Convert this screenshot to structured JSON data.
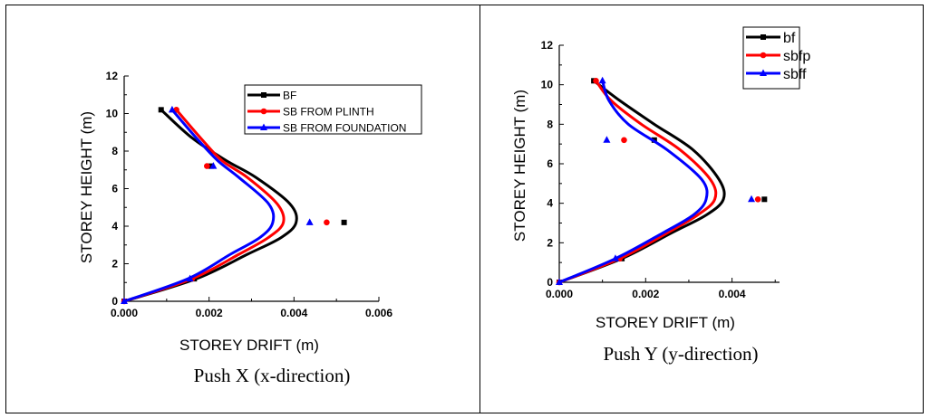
{
  "chart_data": [
    {
      "type": "line",
      "caption": "Push X (x-direction)",
      "xlabel": "STOREY DRIFT (m)",
      "ylabel": "STOREY HEIGHT (m)",
      "xlim": [
        0,
        0.006
      ],
      "ylim": [
        0,
        12
      ],
      "xticks": [
        "0.000",
        "0.002",
        "0.004",
        "0.006"
      ],
      "yticks": [
        "0",
        "2",
        "4",
        "6",
        "8",
        "10",
        "12"
      ],
      "legend_position": "top-right",
      "series": [
        {
          "name": "BF",
          "color": "#000000",
          "marker": "square",
          "points": [
            [
              0,
              0
            ],
            [
              0.00165,
              1.2
            ],
            [
              0.00518,
              4.2
            ],
            [
              0.00205,
              7.2
            ],
            [
              0.00087,
              10.2
            ]
          ],
          "curve": [
            [
              0,
              0
            ],
            [
              0.0017,
              1.2
            ],
            [
              0.0029,
              2.5
            ],
            [
              0.0037,
              3.4
            ],
            [
              0.00405,
              4.2
            ],
            [
              0.0039,
              5.2
            ],
            [
              0.0031,
              6.6
            ],
            [
              0.0024,
              7.5
            ],
            [
              0.0016,
              8.7
            ],
            [
              0.00087,
              10.2
            ]
          ]
        },
        {
          "name": "SB FROM PLINTH",
          "color": "#ff0000",
          "marker": "circle",
          "points": [
            [
              0,
              0
            ],
            [
              0.0016,
              1.2
            ],
            [
              0.00477,
              4.2
            ],
            [
              0.00195,
              7.2
            ],
            [
              0.00123,
              10.2
            ]
          ],
          "curve": [
            [
              0,
              0
            ],
            [
              0.0016,
              1.2
            ],
            [
              0.0027,
              2.5
            ],
            [
              0.0034,
              3.4
            ],
            [
              0.00375,
              4.2
            ],
            [
              0.0036,
              5.2
            ],
            [
              0.0029,
              6.6
            ],
            [
              0.0023,
              7.5
            ],
            [
              0.0018,
              8.7
            ],
            [
              0.00123,
              10.2
            ]
          ]
        },
        {
          "name": "SB FROM FOUNDATION",
          "color": "#0000ff",
          "marker": "triangle",
          "points": [
            [
              0,
              0
            ],
            [
              0.00155,
              1.2
            ],
            [
              0.00437,
              4.2
            ],
            [
              0.0021,
              7.2
            ],
            [
              0.00113,
              10.2
            ]
          ],
          "curve": [
            [
              0,
              0
            ],
            [
              0.0015,
              1.2
            ],
            [
              0.0025,
              2.5
            ],
            [
              0.0032,
              3.4
            ],
            [
              0.0035,
              4.2
            ],
            [
              0.0034,
              5.2
            ],
            [
              0.0027,
              6.6
            ],
            [
              0.0022,
              7.5
            ],
            [
              0.0017,
              8.7
            ],
            [
              0.00113,
              10.2
            ]
          ]
        }
      ]
    },
    {
      "type": "line",
      "caption": "Push Y (y-direction)",
      "xlabel": "STOREY DRIFT (m)",
      "ylabel": "STOREY HEIGHT (m)",
      "xlim": [
        0,
        0.0051
      ],
      "ylim": [
        0,
        12
      ],
      "xticks": [
        "0.000",
        "0.002",
        "0.004"
      ],
      "yticks": [
        "0",
        "2",
        "4",
        "6",
        "8",
        "10",
        "12"
      ],
      "legend_position": "top-right",
      "series": [
        {
          "name": "bf",
          "color": "#000000",
          "marker": "square",
          "points": [
            [
              0,
              0
            ],
            [
              0.00145,
              1.2
            ],
            [
              0.00475,
              4.2
            ],
            [
              0.0022,
              7.2
            ],
            [
              0.0008,
              10.2
            ]
          ],
          "curve": [
            [
              0,
              0
            ],
            [
              0.00145,
              1.2
            ],
            [
              0.0026,
              2.5
            ],
            [
              0.0034,
              3.4
            ],
            [
              0.0038,
              4.2
            ],
            [
              0.0037,
              5.2
            ],
            [
              0.0031,
              6.7
            ],
            [
              0.0022,
              8.0
            ],
            [
              0.0014,
              9.2
            ],
            [
              0.0008,
              10.2
            ]
          ]
        },
        {
          "name": "sbfp",
          "color": "#ff0000",
          "marker": "circle",
          "points": [
            [
              0,
              0
            ],
            [
              0.0014,
              1.2
            ],
            [
              0.0046,
              4.2
            ],
            [
              0.0015,
              7.2
            ],
            [
              0.00085,
              10.2
            ]
          ],
          "curve": [
            [
              0,
              0
            ],
            [
              0.0014,
              1.2
            ],
            [
              0.0025,
              2.5
            ],
            [
              0.0032,
              3.4
            ],
            [
              0.0036,
              4.2
            ],
            [
              0.0035,
              5.2
            ],
            [
              0.0028,
              6.7
            ],
            [
              0.0019,
              8.0
            ],
            [
              0.0012,
              9.2
            ],
            [
              0.00085,
              10.2
            ]
          ]
        },
        {
          "name": "sbff",
          "color": "#0000ff",
          "marker": "triangle",
          "points": [
            [
              0,
              0
            ],
            [
              0.0013,
              1.2
            ],
            [
              0.00445,
              4.2
            ],
            [
              0.0011,
              7.2
            ],
            [
              0.001,
              10.2
            ]
          ],
          "curve": [
            [
              0,
              0
            ],
            [
              0.0013,
              1.2
            ],
            [
              0.0024,
              2.5
            ],
            [
              0.0031,
              3.4
            ],
            [
              0.0034,
              4.2
            ],
            [
              0.0033,
              5.2
            ],
            [
              0.0025,
              6.7
            ],
            [
              0.0016,
              8.0
            ],
            [
              0.00115,
              9.2
            ],
            [
              0.001,
              10.2
            ]
          ]
        }
      ]
    }
  ]
}
